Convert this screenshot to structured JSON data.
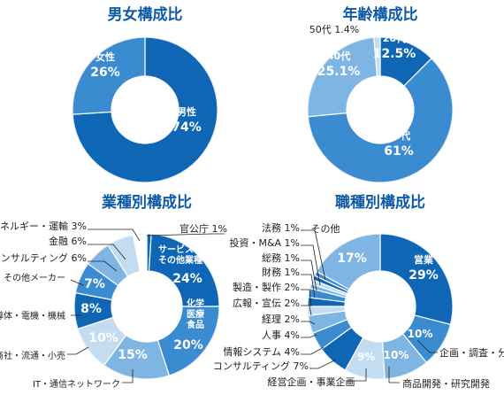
{
  "colors": {
    "dark": "#0f66b5",
    "mid": "#3a8bd0",
    "light": "#7fb5e3",
    "pale": "#c3dcf2",
    "white": "#ffffff",
    "title": "#0d5aa7"
  },
  "chart_data": [
    {
      "id": "gender",
      "type": "pie",
      "title": "男女構成比",
      "slices": [
        {
          "label": "男性",
          "value": 74,
          "display": "74%",
          "color": "#0f66b5"
        },
        {
          "label": "女性",
          "value": 26,
          "display": "26%",
          "color": "#3a8bd0"
        }
      ]
    },
    {
      "id": "age",
      "type": "pie",
      "title": "年齢構成比",
      "slices": [
        {
          "label": "20代",
          "value": 12.5,
          "display": "12.5%",
          "color": "#0f66b5"
        },
        {
          "label": "30代",
          "value": 61,
          "display": "61%",
          "color": "#3a8bd0"
        },
        {
          "label": "40代",
          "value": 25.1,
          "display": "25.1%",
          "color": "#7fb5e3"
        },
        {
          "label": "50代",
          "value": 1.4,
          "display": "1.4%",
          "color": "#c3dcf2"
        }
      ]
    },
    {
      "id": "industry",
      "type": "pie",
      "title": "業種別構成比",
      "slices": [
        {
          "label": "官公庁",
          "value": 1,
          "display": "1%",
          "color": "#0f66b5"
        },
        {
          "label": "サービス・その他業種",
          "value": 24,
          "display": "24%",
          "color": "#0f66b5"
        },
        {
          "label": "化学医療食品",
          "value": 20,
          "display": "20%",
          "color": "#3a8bd0"
        },
        {
          "label": "IT・通信ネットワーク",
          "value": 15,
          "display": "15%",
          "color": "#7fb5e3"
        },
        {
          "label": "商社・流通・小売",
          "value": 10,
          "display": "10%",
          "color": "#c3dcf2"
        },
        {
          "label": "半導体・電機・機械",
          "value": 8,
          "display": "8%",
          "color": "#0f66b5"
        },
        {
          "label": "その他メーカー",
          "value": 7,
          "display": "7%",
          "color": "#3a8bd0"
        },
        {
          "label": "コンサルティング",
          "value": 6,
          "display": "6%",
          "color": "#7fb5e3"
        },
        {
          "label": "金融",
          "value": 6,
          "display": "6%",
          "color": "#c3dcf2"
        },
        {
          "label": "エネルギー・運輸",
          "value": 3,
          "display": "3%",
          "color": "#ffffff"
        }
      ]
    },
    {
      "id": "job",
      "type": "pie",
      "title": "職種別構成比",
      "slices": [
        {
          "label": "営業",
          "value": 29,
          "display": "29%",
          "color": "#0f66b5"
        },
        {
          "label": "企画・調査・分析",
          "value": 10,
          "display": "10%",
          "color": "#3a8bd0"
        },
        {
          "label": "商品開発・研究開発",
          "value": 10,
          "display": "10%",
          "color": "#7fb5e3"
        },
        {
          "label": "経営企画・事業企画",
          "value": 9,
          "display": "9%",
          "color": "#c3dcf2"
        },
        {
          "label": "コンサルティング",
          "value": 7,
          "display": "7%",
          "color": "#0f66b5"
        },
        {
          "label": "情報システム",
          "value": 4,
          "display": "4%",
          "color": "#3a8bd0"
        },
        {
          "label": "人事",
          "value": 4,
          "display": "4%",
          "color": "#7fb5e3"
        },
        {
          "label": "経理",
          "value": 2,
          "display": "2%",
          "color": "#c3dcf2"
        },
        {
          "label": "広報・宣伝",
          "value": 2,
          "display": "2%",
          "color": "#0f66b5"
        },
        {
          "label": "製造・製作",
          "value": 2,
          "display": "2%",
          "color": "#3a8bd0"
        },
        {
          "label": "財務",
          "value": 1,
          "display": "1%",
          "color": "#7fb5e3"
        },
        {
          "label": "総務",
          "value": 1,
          "display": "1%",
          "color": "#c3dcf2"
        },
        {
          "label": "投資・M&A",
          "value": 1,
          "display": "1%",
          "color": "#0f66b5"
        },
        {
          "label": "法務",
          "value": 1,
          "display": "1%",
          "color": "#3a8bd0"
        },
        {
          "label": "その他",
          "value": 17,
          "display": "17%",
          "color": "#7fb5e3"
        }
      ]
    }
  ]
}
